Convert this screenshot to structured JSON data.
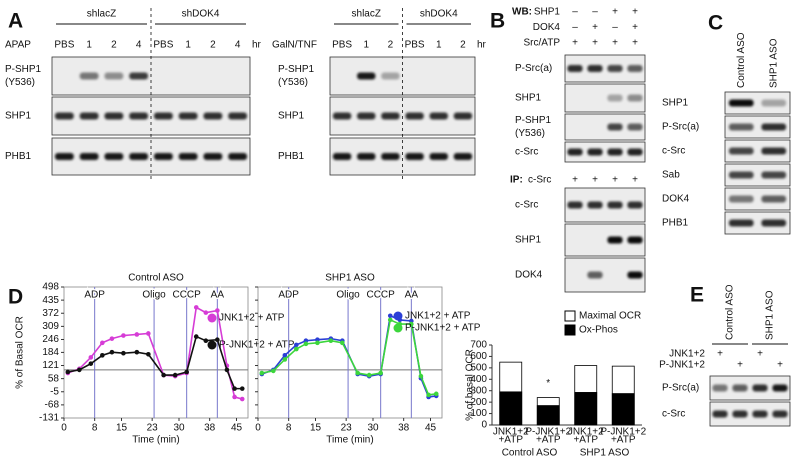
{
  "panels": {
    "A": {
      "label": "A",
      "left": {
        "treatment": "APAP",
        "groups": [
          "shlacZ",
          "shDOK4"
        ],
        "lanes": [
          "PBS",
          "1",
          "2",
          "4",
          "PBS",
          "1",
          "2",
          "4"
        ],
        "unit": "hr",
        "rows": [
          [
            "P-SHP1",
            "(Y536)"
          ],
          [
            "SHP1"
          ],
          [
            "PHB1"
          ]
        ]
      },
      "right": {
        "treatment": "GalN/TNF",
        "groups": [
          "shlacZ",
          "shDOK4"
        ],
        "lanes": [
          "PBS",
          "1",
          "2",
          "PBS",
          "1",
          "2"
        ],
        "unit": "hr",
        "rows": [
          [
            "P-SHP1",
            "(Y536)"
          ],
          [
            "SHP1"
          ],
          [
            "PHB1"
          ]
        ]
      }
    },
    "B": {
      "label": "B",
      "wb": "WB:",
      "conditions": [
        {
          "name": "SHP1",
          "signs": [
            "–",
            "–",
            "+",
            "+"
          ]
        },
        {
          "name": "DOK4",
          "signs": [
            "–",
            "+",
            "–",
            "+"
          ]
        },
        {
          "name": "Src/ATP",
          "signs": [
            "+",
            "+",
            "+",
            "+"
          ]
        }
      ],
      "rows": [
        [
          "P-Src(a)"
        ],
        [
          "SHP1"
        ],
        [
          "P-SHP1",
          "(Y536)"
        ],
        [
          "c-Src"
        ]
      ],
      "ip": "IP:",
      "ip_target": "c-Src",
      "ip_signs": [
        "+",
        "+",
        "+",
        "+"
      ],
      "ip_rows": [
        [
          "c-Src"
        ],
        [
          "SHP1"
        ],
        [
          "DOK4"
        ]
      ]
    },
    "C": {
      "label": "C",
      "lanes": [
        "Control ASO",
        "SHP1 ASO"
      ],
      "rows": [
        [
          "SHP1"
        ],
        [
          "P-Src(a)"
        ],
        [
          "c-Src"
        ],
        [
          "Sab"
        ],
        [
          "DOK4"
        ],
        [
          "PHB1"
        ]
      ]
    },
    "D": {
      "label": "D"
    },
    "E": {
      "label": "E",
      "lanes": [
        "Control ASO",
        "SHP1 ASO"
      ],
      "conditions": [
        {
          "name": "JNK1+2",
          "signs": [
            "+",
            null,
            "+",
            null
          ]
        },
        {
          "name": "P-JNK1+2",
          "signs": [
            null,
            "+",
            null,
            "+"
          ]
        }
      ],
      "rows": [
        [
          "P-Src(a)"
        ],
        [
          "c-Src"
        ]
      ]
    }
  },
  "chart_data": [
    {
      "type": "line",
      "title": "Control ASO",
      "x_label": "Time (min)",
      "y_label": "% of Basal OCR",
      "xlim": [
        0,
        48
      ],
      "xticks": [
        0,
        8,
        15,
        23,
        30,
        38,
        45
      ],
      "ylim": [
        -131,
        498
      ],
      "yticks": [
        -131,
        -68,
        -5,
        58,
        121,
        184,
        246,
        309,
        372,
        435,
        498
      ],
      "reference_y": 100,
      "events": [
        {
          "label": "ADP",
          "x": 8
        },
        {
          "label": "Oligo",
          "x": 23.5
        },
        {
          "label": "CCCP",
          "x": 32
        },
        {
          "label": "AA",
          "x": 40
        }
      ],
      "x": [
        1,
        4,
        7,
        10,
        12.5,
        15.5,
        19,
        22,
        26,
        29,
        32,
        34.5,
        37,
        40,
        42.5,
        44.5,
        46.5
      ],
      "series": [
        {
          "name": "JNK1+2 + ATP",
          "color": "#d63cd6",
          "values": [
            85,
            105,
            160,
            230,
            250,
            265,
            270,
            275,
            75,
            70,
            85,
            400,
            375,
            385,
            120,
            -30,
            -40
          ]
        },
        {
          "name": "P-JNK1+2 + ATP",
          "color": "#111111",
          "values": [
            90,
            100,
            130,
            170,
            185,
            180,
            185,
            175,
            75,
            75,
            90,
            260,
            240,
            245,
            100,
            10,
            10
          ]
        }
      ]
    },
    {
      "type": "line",
      "title": "SHP1 ASO",
      "x_label": "Time (min)",
      "xlim": [
        0,
        48
      ],
      "xticks": [
        0,
        8,
        15,
        23,
        30,
        38,
        45
      ],
      "ylim": [
        -131,
        498
      ],
      "yticks": [
        -131,
        -68,
        -5,
        58,
        121,
        184,
        246,
        309,
        372,
        435,
        498
      ],
      "reference_y": 100,
      "events": [
        {
          "label": "ADP",
          "x": 8
        },
        {
          "label": "Oligo",
          "x": 23.5
        },
        {
          "label": "CCCP",
          "x": 32
        },
        {
          "label": "AA",
          "x": 40
        }
      ],
      "x": [
        1,
        4,
        7,
        10,
        12.5,
        15.5,
        19,
        22,
        26,
        29,
        32,
        34.5,
        37,
        40,
        42.5,
        44.5,
        46.5
      ],
      "series": [
        {
          "name": "JNK1+2 + ATP",
          "color": "#2b3fd6",
          "values": [
            80,
            100,
            170,
            220,
            240,
            245,
            250,
            240,
            80,
            70,
            80,
            360,
            340,
            335,
            60,
            -30,
            -25
          ]
        },
        {
          "name": "P-JNK1+2 + ATP",
          "color": "#3cd63c",
          "values": [
            85,
            95,
            150,
            200,
            225,
            230,
            240,
            230,
            85,
            75,
            85,
            340,
            320,
            320,
            70,
            -20,
            -15
          ]
        }
      ]
    },
    {
      "type": "bar",
      "y_label": "% of basal OCR",
      "categories": [
        [
          "JNK1+2",
          "+ATP"
        ],
        [
          "P-JNK1+2",
          "+ATP"
        ],
        [
          "JNK1+2",
          "+ATP"
        ],
        [
          "P-JNK1+2",
          "+ATP"
        ]
      ],
      "groups": [
        "Control ASO",
        "SHP1 ASO"
      ],
      "ylim": [
        0,
        700
      ],
      "yticks": [
        0,
        100,
        200,
        300,
        400,
        500,
        600,
        700
      ],
      "annotation": "*",
      "series": [
        {
          "name": "Maximal OCR",
          "color": "#ffffff",
          "values": [
            550,
            240,
            520,
            515
          ]
        },
        {
          "name": "Ox-Phos",
          "color": "#000000",
          "values": [
            290,
            170,
            285,
            275
          ]
        }
      ]
    }
  ]
}
